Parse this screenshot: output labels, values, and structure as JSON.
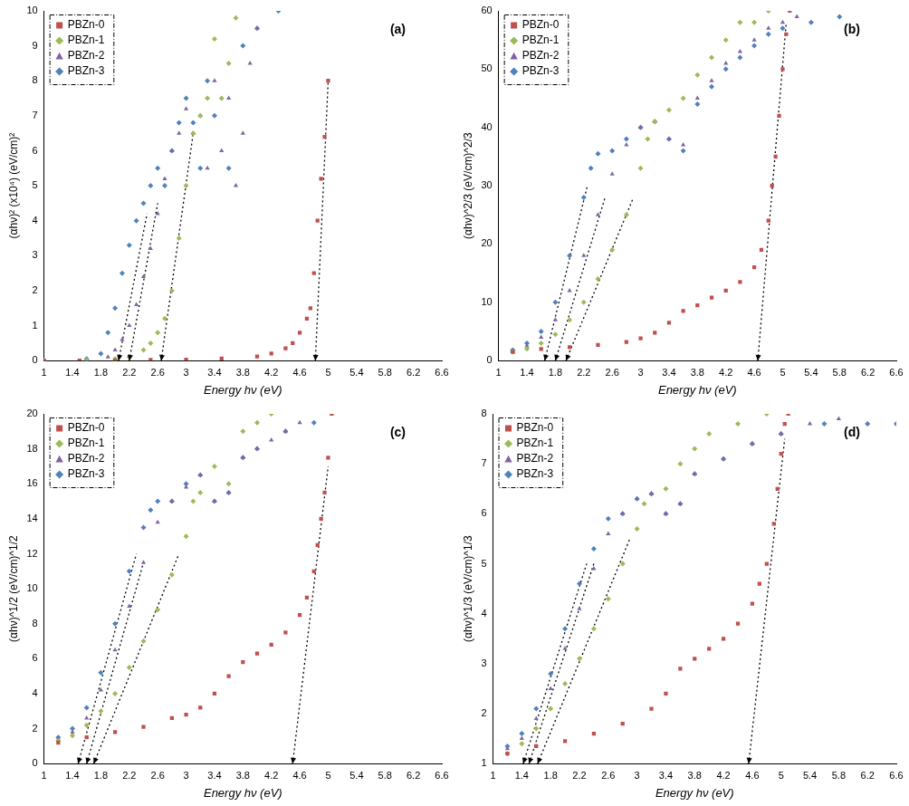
{
  "chart_data": [
    {
      "type": "scatter",
      "label": "(a)",
      "x_label": "Energy hν (eV)",
      "y_label": "(αhν)² (x10⁴) (eV/cm)²",
      "xlim": [
        1,
        6.6
      ],
      "xticks": [
        1,
        1.4,
        1.8,
        2.2,
        2.6,
        3,
        3.4,
        3.8,
        4.2,
        4.6,
        5,
        5.4,
        5.8,
        6.2,
        6.6
      ],
      "ylim": [
        0,
        10
      ],
      "yticks": [
        0,
        1,
        2,
        3,
        4,
        5,
        6,
        7,
        8,
        9,
        10
      ],
      "grid": false,
      "legend": "upper left",
      "series": [
        {
          "name": "PBZn-0",
          "color": "#c0504d",
          "marker": "square",
          "x": [
            1,
            1.5,
            2,
            2.5,
            3,
            3.5,
            4,
            4.2,
            4.4,
            4.5,
            4.6,
            4.7,
            4.75,
            4.8,
            4.85,
            4.9,
            4.95,
            5.0
          ],
          "values": [
            0,
            0,
            0,
            0.02,
            0.03,
            0.06,
            0.12,
            0.2,
            0.35,
            0.5,
            0.8,
            1.2,
            1.5,
            2.5,
            4,
            5.2,
            6.4,
            8.0
          ]
        },
        {
          "name": "PBZn-1",
          "color": "#9bbb59",
          "marker": "diamond",
          "x": [
            1,
            1.6,
            2.0,
            2.2,
            2.4,
            2.5,
            2.6,
            2.7,
            2.8,
            2.9,
            3.0,
            3.1,
            3.2,
            3.3,
            3.4,
            3.5,
            3.6,
            3.7
          ],
          "values": [
            0,
            0.02,
            0.05,
            0.1,
            0.3,
            0.5,
            0.8,
            1.2,
            2.0,
            3.5,
            5.0,
            6.5,
            7.0,
            7.5,
            9.2,
            7.5,
            8.5,
            9.8
          ]
        },
        {
          "name": "PBZn-2",
          "color": "#8064a2",
          "marker": "triangle",
          "x": [
            1,
            1.6,
            1.9,
            2.0,
            2.1,
            2.2,
            2.3,
            2.4,
            2.5,
            2.6,
            2.7,
            2.8,
            2.9,
            3.0,
            3.1,
            3.2,
            3.3,
            3.4,
            3.5,
            3.6,
            3.7,
            3.8,
            3.9,
            4.0
          ],
          "values": [
            0,
            0.02,
            0.1,
            0.3,
            0.6,
            1.0,
            1.6,
            2.4,
            3.2,
            4.2,
            5.2,
            6.0,
            6.5,
            7.2,
            6.5,
            7.0,
            5.5,
            8.0,
            6.0,
            7.5,
            5.0,
            6.5,
            8.5,
            9.5
          ]
        },
        {
          "name": "PBZn-3",
          "color": "#4f81bd",
          "marker": "diamond",
          "x": [
            1,
            1.6,
            1.8,
            1.9,
            2.0,
            2.1,
            2.2,
            2.3,
            2.4,
            2.5,
            2.6,
            2.7,
            2.8,
            2.9,
            3.0,
            3.1,
            3.2,
            3.3,
            3.4,
            3.6,
            3.8,
            4.0,
            4.3
          ],
          "values": [
            0,
            0.05,
            0.2,
            0.8,
            1.5,
            2.5,
            3.3,
            4.0,
            4.5,
            5.0,
            5.5,
            5.0,
            6.0,
            6.8,
            7.5,
            6.8,
            5.5,
            8.0,
            7.0,
            5.5,
            9.0,
            9.5,
            10
          ]
        }
      ],
      "tangents": [
        {
          "color": "#000000",
          "line_style": "dotted",
          "x": [
            2.05,
            2.45
          ],
          "y": [
            0,
            4.2
          ]
        },
        {
          "color": "#000000",
          "line_style": "dotted",
          "x": [
            2.2,
            2.6
          ],
          "y": [
            0,
            4.5
          ]
        },
        {
          "color": "#000000",
          "line_style": "dotted",
          "x": [
            2.65,
            3.1
          ],
          "y": [
            0,
            6.5
          ]
        },
        {
          "color": "#000000",
          "line_style": "dotted",
          "x": [
            4.82,
            5.0
          ],
          "y": [
            0,
            8.0
          ]
        }
      ]
    },
    {
      "type": "scatter",
      "label": "(b)",
      "x_label": "Energy hν (eV)",
      "y_label": "(αhν)^2/3 (eV/cm)^2/3",
      "xlim": [
        1,
        6.6
      ],
      "xticks": [
        1,
        1.4,
        1.8,
        2.2,
        2.6,
        3,
        3.4,
        3.8,
        4.2,
        4.6,
        5,
        5.4,
        5.8,
        6.2,
        6.6
      ],
      "ylim": [
        0,
        60
      ],
      "yticks": [
        0,
        10,
        20,
        30,
        40,
        50,
        60
      ],
      "grid": false,
      "legend": "upper left",
      "series": [
        {
          "name": "PBZn-0",
          "color": "#c0504d",
          "marker": "square",
          "x": [
            1.2,
            1.6,
            2.0,
            2.4,
            2.8,
            3.0,
            3.2,
            3.4,
            3.6,
            3.8,
            4.0,
            4.2,
            4.4,
            4.6,
            4.7,
            4.8,
            4.85,
            4.9,
            4.95,
            5.0,
            5.05,
            5.1
          ],
          "values": [
            1.5,
            2,
            2.3,
            2.7,
            3.2,
            3.8,
            4.8,
            6.5,
            8.5,
            9.5,
            10.8,
            12,
            13.5,
            16,
            19,
            24,
            30,
            35,
            42,
            50,
            56,
            60
          ]
        },
        {
          "name": "PBZn-1",
          "color": "#9bbb59",
          "marker": "diamond",
          "x": [
            1.2,
            1.4,
            1.6,
            1.8,
            2.0,
            2.2,
            2.4,
            2.6,
            2.8,
            3.0,
            3.1,
            3.2,
            3.4,
            3.6,
            3.8,
            4.0,
            4.2,
            4.4,
            4.6,
            4.8
          ],
          "values": [
            1.5,
            2,
            3,
            4.5,
            7,
            10,
            14,
            19,
            25,
            33,
            38,
            41,
            43,
            45,
            49,
            52,
            55,
            58,
            58,
            60
          ]
        },
        {
          "name": "PBZn-2",
          "color": "#8064a2",
          "marker": "triangle",
          "x": [
            1.2,
            1.4,
            1.6,
            1.8,
            2.0,
            2.2,
            2.4,
            2.6,
            2.8,
            3.0,
            3.2,
            3.4,
            3.6,
            3.8,
            4.0,
            4.2,
            4.4,
            4.6,
            4.8,
            5.0,
            5.2
          ],
          "values": [
            1.5,
            2.5,
            4,
            7,
            12,
            18,
            25,
            32,
            37,
            40,
            41,
            38,
            37,
            45,
            48,
            51,
            53,
            55,
            57,
            58,
            59
          ]
        },
        {
          "name": "PBZn-3",
          "color": "#4f81bd",
          "marker": "diamond",
          "x": [
            1.2,
            1.4,
            1.6,
            1.8,
            2.0,
            2.2,
            2.3,
            2.4,
            2.6,
            2.8,
            3.0,
            3.2,
            3.4,
            3.6,
            3.8,
            4.0,
            4.2,
            4.4,
            4.6,
            4.8,
            5.0,
            5.4,
            5.8
          ],
          "values": [
            1.8,
            3,
            5,
            10,
            18,
            28,
            33,
            35.5,
            36,
            38,
            40,
            41,
            38,
            36,
            44,
            47,
            50,
            52,
            54,
            56,
            57,
            58,
            59
          ]
        }
      ],
      "tangents": [
        {
          "color": "#000000",
          "line_style": "dotted",
          "x": [
            1.65,
            2.25
          ],
          "y": [
            0,
            30
          ]
        },
        {
          "color": "#000000",
          "line_style": "dotted",
          "x": [
            1.8,
            2.5
          ],
          "y": [
            0,
            28
          ]
        },
        {
          "color": "#000000",
          "line_style": "dotted",
          "x": [
            1.95,
            2.9
          ],
          "y": [
            0,
            28
          ]
        },
        {
          "color": "#000000",
          "line_style": "dotted",
          "x": [
            4.65,
            5.05
          ],
          "y": [
            0,
            58
          ]
        }
      ]
    },
    {
      "type": "scatter",
      "label": "(c)",
      "x_label": "Energy hν (eV)",
      "y_label": "(αhν)^1/2 (eV/cm)^1/2",
      "xlim": [
        1,
        6.6
      ],
      "xticks": [
        1,
        1.4,
        1.8,
        2.2,
        2.6,
        3,
        3.4,
        3.8,
        4.2,
        4.6,
        5,
        5.4,
        5.8,
        6.2,
        6.6
      ],
      "ylim": [
        0,
        20
      ],
      "yticks": [
        0,
        2,
        4,
        6,
        8,
        10,
        12,
        14,
        16,
        18,
        20
      ],
      "grid": false,
      "legend": "upper left",
      "series": [
        {
          "name": "PBZn-0",
          "color": "#c0504d",
          "marker": "square",
          "x": [
            1.2,
            1.6,
            2.0,
            2.4,
            2.8,
            3.0,
            3.2,
            3.4,
            3.6,
            3.8,
            4.0,
            4.2,
            4.4,
            4.6,
            4.7,
            4.8,
            4.85,
            4.9,
            4.95,
            5.0,
            5.05
          ],
          "values": [
            1.2,
            1.5,
            1.8,
            2.1,
            2.6,
            2.8,
            3.2,
            4.0,
            5.0,
            5.8,
            6.3,
            6.8,
            7.5,
            8.5,
            9.5,
            11,
            12.5,
            14,
            15.5,
            17.5,
            20
          ]
        },
        {
          "name": "PBZn-1",
          "color": "#9bbb59",
          "marker": "diamond",
          "x": [
            1.2,
            1.4,
            1.6,
            1.8,
            2.0,
            2.2,
            2.4,
            2.6,
            2.8,
            3.0,
            3.1,
            3.2,
            3.4,
            3.6,
            3.8,
            4.0,
            4.2
          ],
          "values": [
            1.3,
            1.6,
            2.2,
            3.0,
            4.0,
            5.5,
            7.0,
            8.8,
            10.8,
            13,
            15,
            15.5,
            17,
            16,
            19,
            19.5,
            20
          ]
        },
        {
          "name": "PBZn-2",
          "color": "#8064a2",
          "marker": "triangle",
          "x": [
            1.2,
            1.4,
            1.6,
            1.8,
            2.0,
            2.2,
            2.4,
            2.6,
            2.8,
            3.0,
            3.2,
            3.4,
            3.6,
            3.8,
            4.0,
            4.2,
            4.4,
            4.6
          ],
          "values": [
            1.4,
            1.8,
            2.6,
            4.2,
            6.5,
            9,
            11.5,
            13.8,
            15,
            15.8,
            16.5,
            15,
            15.5,
            17.5,
            18,
            18.5,
            19,
            19.5
          ]
        },
        {
          "name": "PBZn-3",
          "color": "#4f81bd",
          "marker": "diamond",
          "x": [
            1.2,
            1.4,
            1.6,
            1.8,
            2.0,
            2.2,
            2.4,
            2.5,
            2.6,
            2.8,
            3.0,
            3.2,
            3.4,
            3.6,
            3.8,
            4.0,
            4.4,
            4.8
          ],
          "values": [
            1.5,
            2,
            3.2,
            5.2,
            8,
            11,
            13.5,
            14.5,
            15,
            15,
            16,
            16.5,
            15,
            15.5,
            17.5,
            18,
            19,
            19.5
          ]
        }
      ],
      "tangents": [
        {
          "color": "#000000",
          "line_style": "dotted",
          "x": [
            1.48,
            2.3
          ],
          "y": [
            0,
            12
          ]
        },
        {
          "color": "#000000",
          "line_style": "dotted",
          "x": [
            1.6,
            2.4
          ],
          "y": [
            0,
            11.5
          ]
        },
        {
          "color": "#000000",
          "line_style": "dotted",
          "x": [
            1.7,
            2.9
          ],
          "y": [
            0,
            12
          ]
        },
        {
          "color": "#000000",
          "line_style": "dotted",
          "x": [
            4.5,
            5.0
          ],
          "y": [
            0,
            17
          ]
        }
      ]
    },
    {
      "type": "scatter",
      "label": "(d)",
      "x_label": "Energy hν (eV)",
      "y_label": "(αhν)^1/3 (eV/cm)^1/3",
      "xlim": [
        1,
        6.6
      ],
      "xticks": [
        1,
        1.4,
        1.8,
        2.2,
        2.6,
        3,
        3.4,
        3.8,
        4.2,
        4.6,
        5,
        5.4,
        5.8,
        6.2,
        6.6
      ],
      "ylim": [
        1,
        8
      ],
      "yticks": [
        1,
        2,
        3,
        4,
        5,
        6,
        7,
        8
      ],
      "grid": false,
      "legend": "upper left",
      "series": [
        {
          "name": "PBZn-0",
          "color": "#c0504d",
          "marker": "square",
          "x": [
            1.2,
            1.6,
            2.0,
            2.4,
            2.8,
            3.2,
            3.4,
            3.6,
            3.8,
            4.0,
            4.2,
            4.4,
            4.6,
            4.7,
            4.8,
            4.9,
            4.95,
            5.0,
            5.05,
            5.1
          ],
          "values": [
            1.2,
            1.35,
            1.45,
            1.6,
            1.8,
            2.1,
            2.4,
            2.9,
            3.1,
            3.3,
            3.5,
            3.8,
            4.2,
            4.6,
            5.0,
            5.8,
            6.5,
            7.2,
            7.8,
            8
          ]
        },
        {
          "name": "PBZn-1",
          "color": "#9bbb59",
          "marker": "diamond",
          "x": [
            1.2,
            1.4,
            1.6,
            1.8,
            2.0,
            2.2,
            2.4,
            2.6,
            2.8,
            3.0,
            3.1,
            3.4,
            3.6,
            3.8,
            4.0,
            4.4,
            4.8
          ],
          "values": [
            1.2,
            1.4,
            1.7,
            2.1,
            2.6,
            3.1,
            3.7,
            4.3,
            5.0,
            5.7,
            6.2,
            6.5,
            7.0,
            7.3,
            7.6,
            7.8,
            8
          ]
        },
        {
          "name": "PBZn-2",
          "color": "#8064a2",
          "marker": "triangle",
          "x": [
            1.2,
            1.4,
            1.6,
            1.8,
            2.0,
            2.2,
            2.4,
            2.6,
            2.8,
            3.0,
            3.2,
            3.4,
            3.6,
            3.8,
            4.2,
            4.6,
            5.0,
            5.4,
            5.8
          ],
          "values": [
            1.3,
            1.5,
            1.9,
            2.5,
            3.3,
            4.1,
            4.9,
            5.6,
            6.0,
            6.3,
            6.4,
            6.0,
            6.2,
            6.8,
            7.1,
            7.4,
            7.6,
            7.8,
            7.9
          ]
        },
        {
          "name": "PBZn-3",
          "color": "#4f81bd",
          "marker": "diamond",
          "x": [
            1.2,
            1.4,
            1.6,
            1.8,
            2.0,
            2.2,
            2.4,
            2.6,
            2.8,
            3.0,
            3.2,
            3.4,
            3.6,
            3.8,
            4.2,
            4.6,
            5.0,
            5.6,
            6.2,
            6.6
          ],
          "values": [
            1.35,
            1.6,
            2.1,
            2.8,
            3.7,
            4.6,
            5.3,
            5.9,
            6.0,
            6.3,
            6.4,
            6.0,
            6.2,
            6.8,
            7.1,
            7.4,
            7.6,
            7.8,
            7.8,
            7.8
          ]
        }
      ],
      "tangents": [
        {
          "color": "#000000",
          "line_style": "dotted",
          "x": [
            1.42,
            2.3
          ],
          "y": [
            1,
            5
          ]
        },
        {
          "color": "#000000",
          "line_style": "dotted",
          "x": [
            1.5,
            2.4
          ],
          "y": [
            1,
            5
          ]
        },
        {
          "color": "#000000",
          "line_style": "dotted",
          "x": [
            1.62,
            2.9
          ],
          "y": [
            1,
            5.5
          ]
        },
        {
          "color": "#000000",
          "line_style": "dotted",
          "x": [
            4.55,
            5.05
          ],
          "y": [
            1,
            7.5
          ]
        }
      ]
    }
  ]
}
